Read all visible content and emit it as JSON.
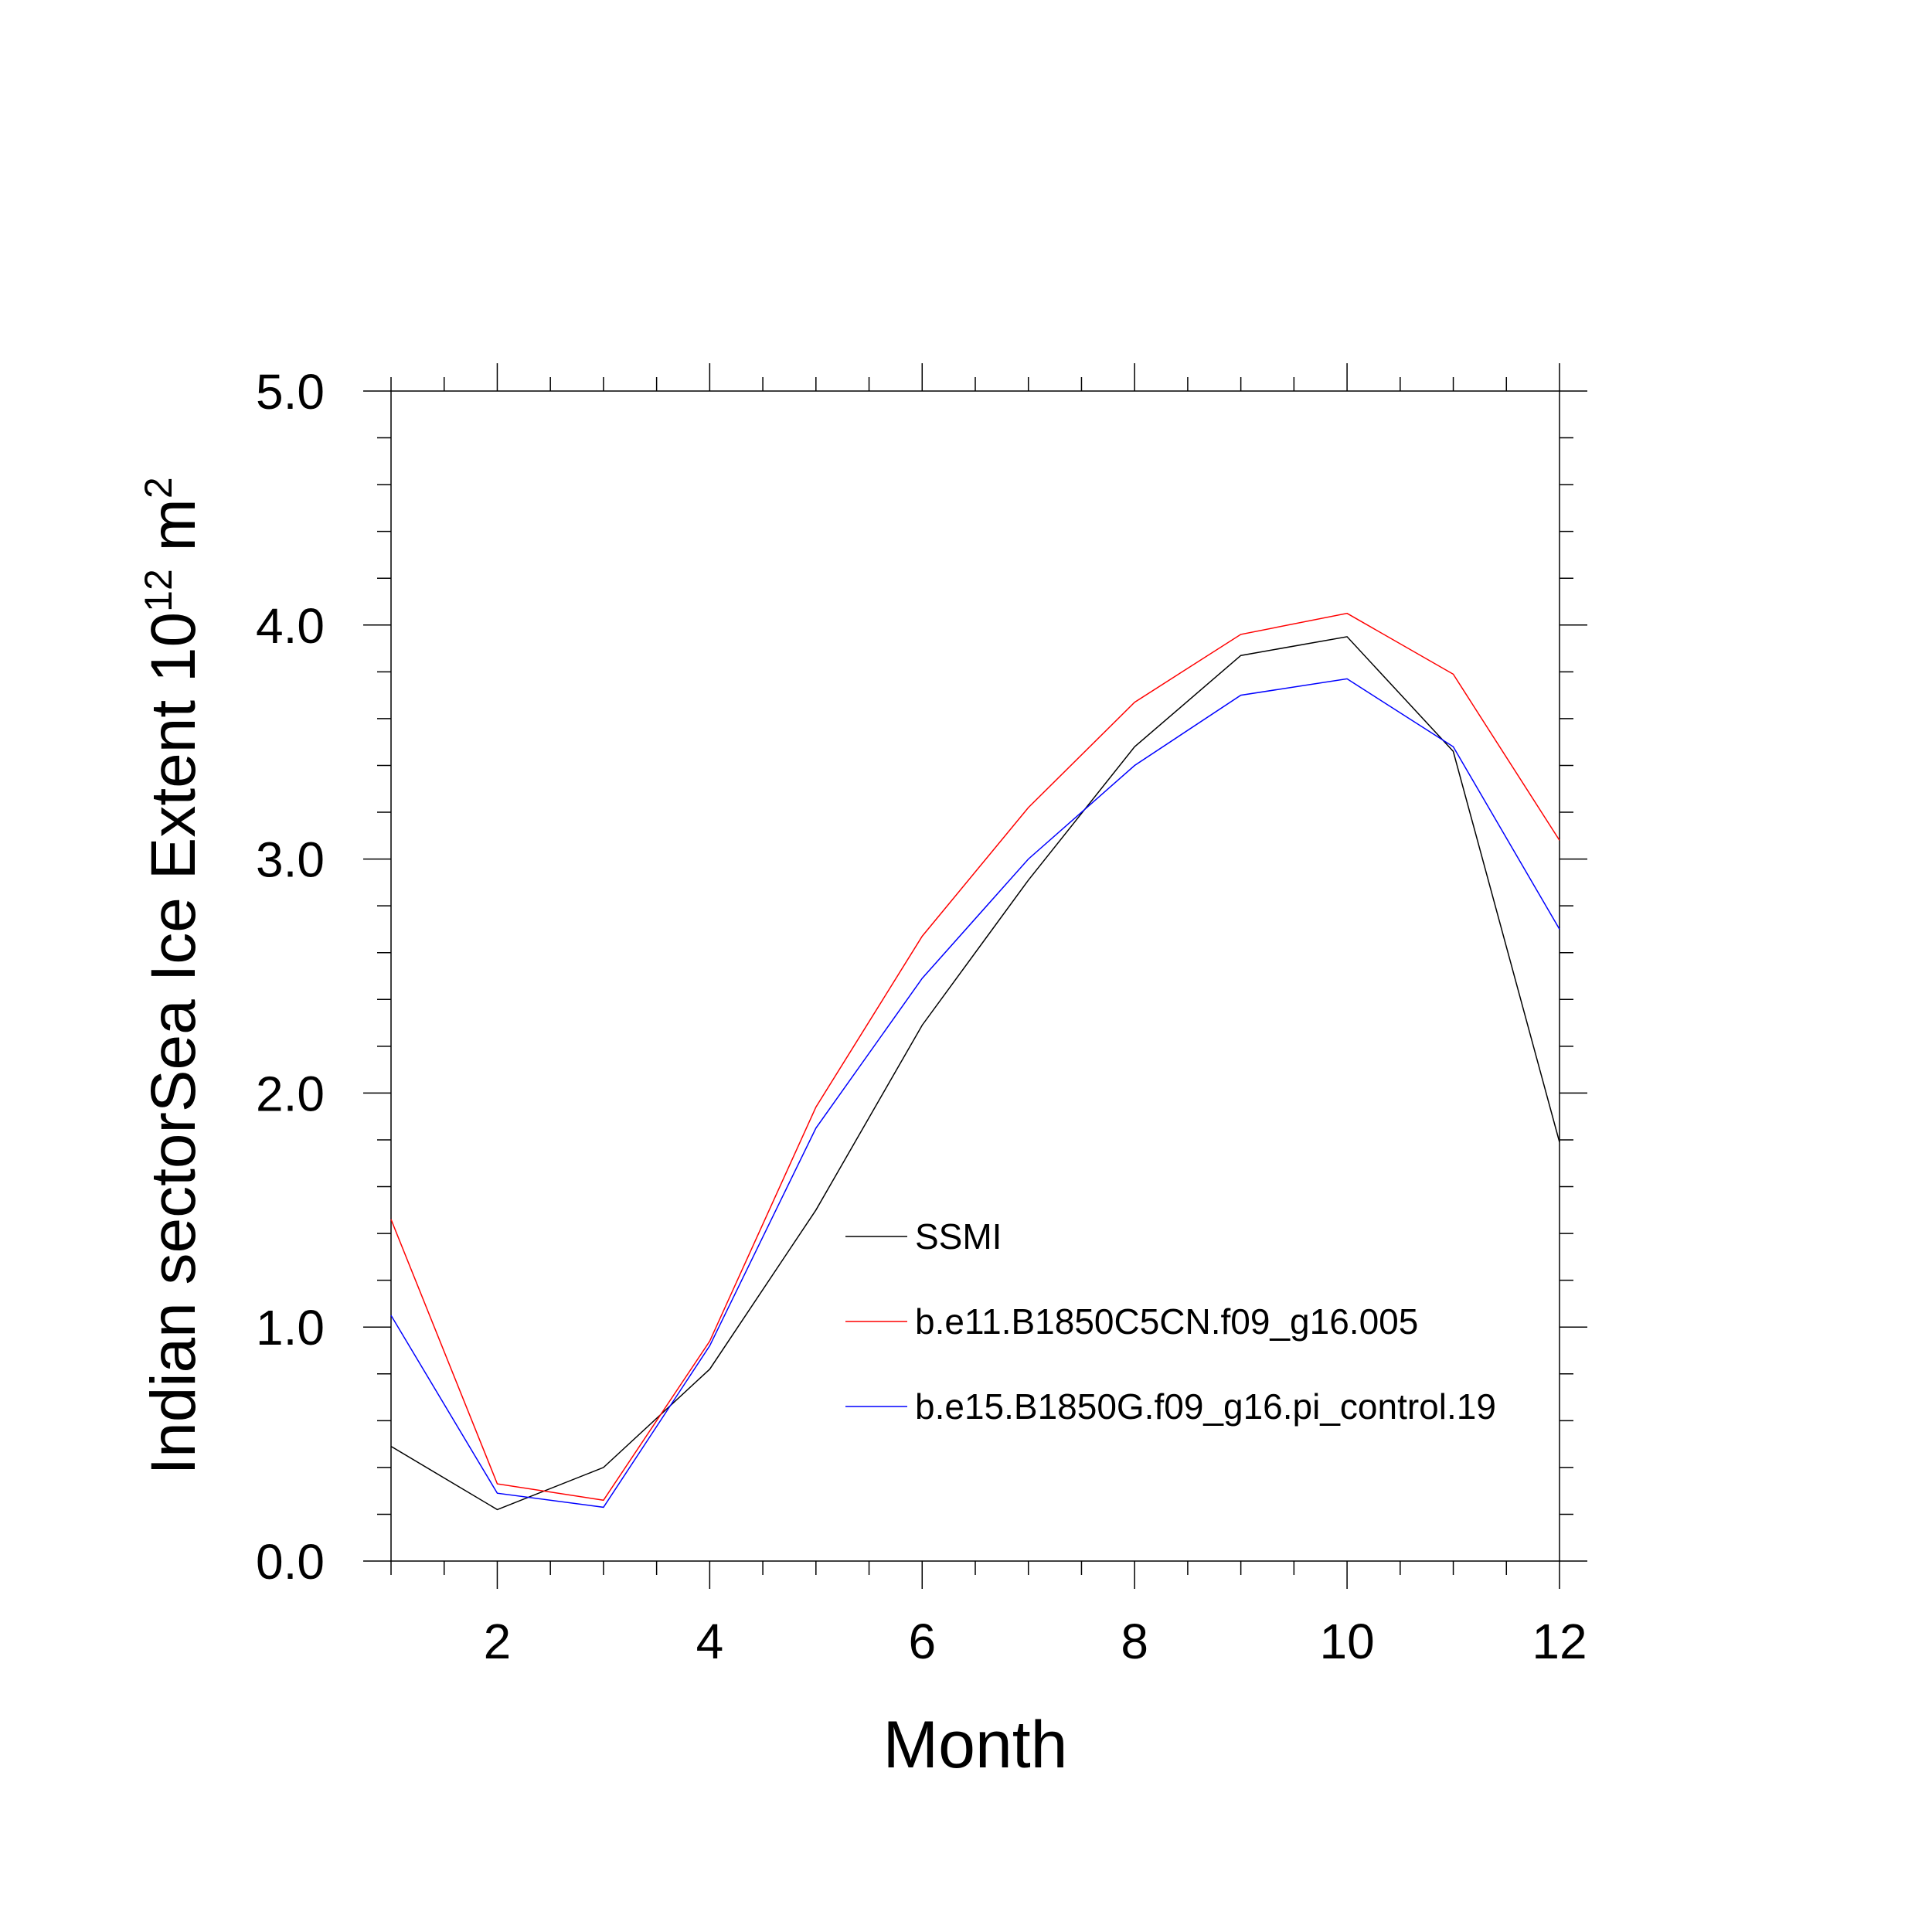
{
  "chart_data": {
    "type": "line",
    "title": "",
    "xlabel": "Month",
    "ylabel": "Indian sectorSea Ice Extent 10",
    "ylabel_superscript": "12",
    "ylabel_unit": " m",
    "ylabel_unit_superscript": "2",
    "xlim": [
      1,
      12
    ],
    "ylim": [
      0.0,
      5.0
    ],
    "x_ticks": [
      2,
      4,
      6,
      8,
      10,
      12
    ],
    "x_tick_labels": [
      "2",
      "4",
      "6",
      "8",
      "10",
      "12"
    ],
    "y_ticks": [
      0.0,
      1.0,
      2.0,
      3.0,
      4.0,
      5.0
    ],
    "y_tick_labels": [
      "0.0",
      "1.0",
      "2.0",
      "3.0",
      "4.0",
      "5.0"
    ],
    "grid": false,
    "legend_position": "center-right",
    "x": [
      1,
      2,
      3,
      4,
      5,
      6,
      7,
      8,
      9,
      10,
      11,
      12
    ],
    "series": [
      {
        "name": "SSMI",
        "color": "#000000",
        "values": [
          0.49,
          0.22,
          0.4,
          0.82,
          1.5,
          2.29,
          2.91,
          3.48,
          3.87,
          3.95,
          3.46,
          1.79
        ]
      },
      {
        "name": "b.e11.B1850C5CN.f09_g16.005",
        "color": "#ff0000",
        "values": [
          1.46,
          0.33,
          0.26,
          0.94,
          1.94,
          2.67,
          3.22,
          3.67,
          3.96,
          4.05,
          3.79,
          3.08
        ]
      },
      {
        "name": "b.e15.B1850G.f09_g16.pi_control.19",
        "color": "#0000ff",
        "values": [
          1.05,
          0.29,
          0.23,
          0.92,
          1.85,
          2.49,
          3.0,
          3.4,
          3.7,
          3.77,
          3.48,
          2.7
        ]
      }
    ]
  }
}
